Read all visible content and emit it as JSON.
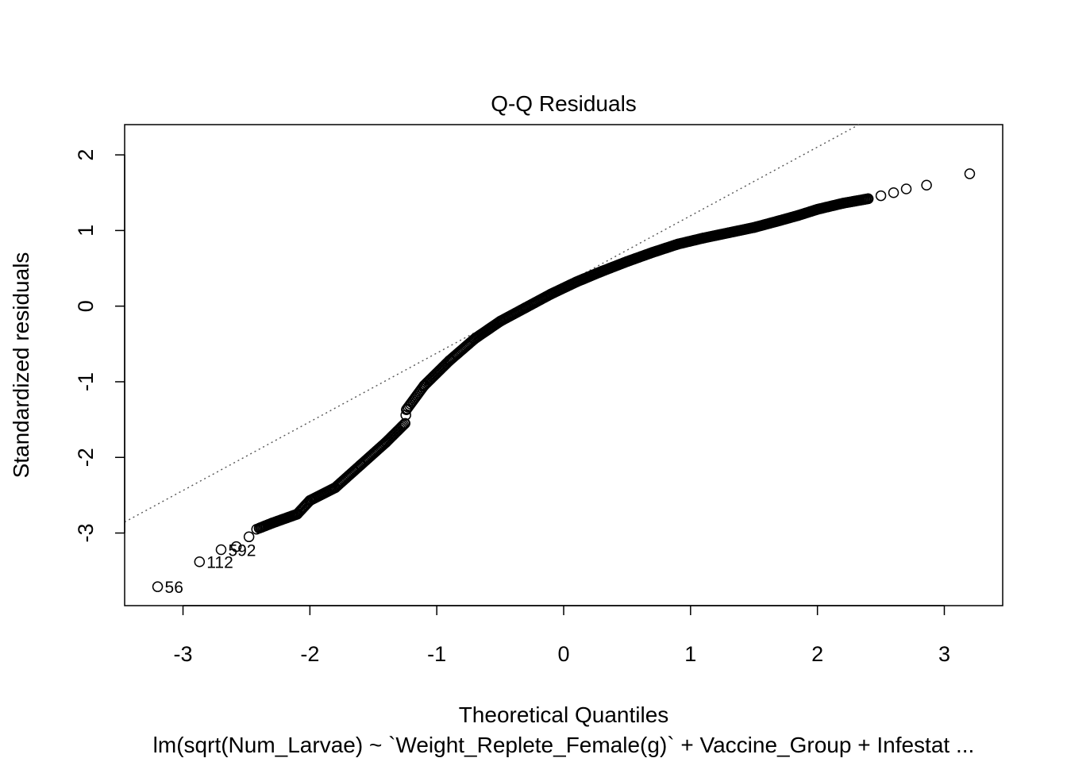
{
  "chart_data": {
    "type": "scatter",
    "title": "Q-Q Residuals",
    "xlabel": "Theoretical Quantiles",
    "ylabel": "Standardized residuals",
    "subtitle": "lm(sqrt(Num_Larvae) ~ `Weight_Replete_Female(g)` + Vaccine_Group + Infestat ...",
    "xlim": [
      -3.46,
      3.46
    ],
    "ylim": [
      -3.96,
      2.4
    ],
    "x_ticks": [
      "-3",
      "-2",
      "-1",
      "0",
      "1",
      "2",
      "3"
    ],
    "y_ticks": [
      "-3",
      "-2",
      "-1",
      "0",
      "1",
      "2"
    ],
    "grid": false,
    "reference_line": {
      "style": "dotted",
      "slope": 0.908,
      "intercept": 0.287
    },
    "labeled_points": [
      {
        "label": "56",
        "x": -3.2,
        "y": -3.71
      },
      {
        "label": "112",
        "x": -2.87,
        "y": -3.38
      },
      {
        "label": "592",
        "x": -2.7,
        "y": -3.22
      }
    ],
    "curve_knots": {
      "x": [
        -3.2,
        -2.87,
        -2.7,
        -2.58,
        -2.48,
        -2.42,
        -2.3,
        -2.1,
        -2.0,
        -1.8,
        -1.6,
        -1.4,
        -1.25,
        -1.24,
        -1.1,
        -0.9,
        -0.7,
        -0.5,
        -0.3,
        -0.1,
        0.1,
        0.3,
        0.5,
        0.7,
        0.9,
        1.1,
        1.3,
        1.5,
        1.7,
        1.85,
        2.0,
        2.2,
        2.4,
        2.5,
        2.6,
        2.7,
        2.86,
        3.2
      ],
      "y": [
        -3.71,
        -3.38,
        -3.22,
        -3.18,
        -3.05,
        -2.95,
        -2.87,
        -2.75,
        -2.57,
        -2.4,
        -2.1,
        -1.8,
        -1.55,
        -1.37,
        -1.05,
        -0.72,
        -0.43,
        -0.2,
        -0.02,
        0.16,
        0.32,
        0.46,
        0.59,
        0.71,
        0.82,
        0.9,
        0.97,
        1.04,
        1.13,
        1.2,
        1.28,
        1.36,
        1.42,
        1.46,
        1.5,
        1.55,
        1.6,
        1.75
      ]
    },
    "n_points": 520
  }
}
